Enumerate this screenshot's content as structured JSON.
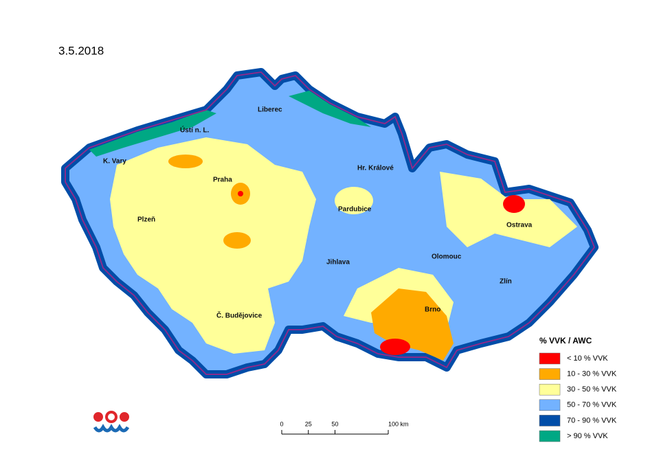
{
  "date": "3.5.2018",
  "cities": [
    "Liberec",
    "Ústí n. L.",
    "K. Vary",
    "Hr. Králové",
    "Praha",
    "Pardubice",
    "Plzeň",
    "Ostrava",
    "Olomouc",
    "Jihlava",
    "Zlín",
    "Brno",
    "Č. Budějovice"
  ],
  "legend": {
    "title": "% VVK / AWC",
    "items": [
      {
        "label": "< 10 % VVK",
        "color": "#ff0000"
      },
      {
        "label": "10 - 30 % VVK",
        "color": "#ffaa00"
      },
      {
        "label": "30 - 50 % VVK",
        "color": "#ffff99"
      },
      {
        "label": "50 - 70 % VVK",
        "color": "#73b2ff"
      },
      {
        "label": "70 - 90 % VVK",
        "color": "#004da8"
      },
      {
        "label": "> 90 % VVK",
        "color": "#00a884"
      }
    ]
  },
  "scale": {
    "ticks": [
      0,
      25,
      50,
      {
        "value": 100,
        "label": "100 km"
      }
    ]
  }
}
